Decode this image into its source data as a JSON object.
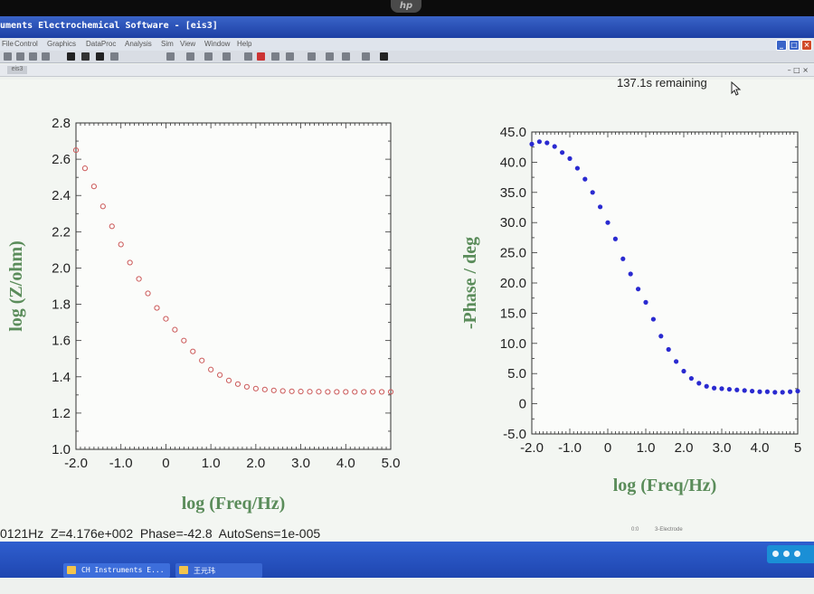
{
  "window": {
    "title": "uments Electrochemical Software - [eis3]",
    "menu": [
      "File",
      "Control",
      "Graphics",
      "DataProc",
      "Analysis",
      "Sim",
      "View",
      "Window",
      "Help"
    ]
  },
  "document_tab": "eis3",
  "progress": {
    "remaining": "137.1s remaining"
  },
  "status": {
    "readout": "0121Hz  Z=4.176e+002  Phase=-42.8  AutoSens=1e-005",
    "tiny_left": "0:0",
    "tiny_right": "3-Electrode"
  },
  "taskbar": {
    "items": [
      "CH Instruments E...",
      "王元玮"
    ]
  },
  "colors": {
    "axis_label": "#5a8c5a",
    "impedance_marker": "#cc5a5a",
    "phase_marker": "#2a2ad0"
  },
  "chart_data": [
    {
      "type": "scatter",
      "xlabel": "log (Freq/Hz)",
      "ylabel": "log (Z/ohm)",
      "xlim": [
        -2.0,
        5.0
      ],
      "ylim": [
        1.0,
        2.8
      ],
      "xticks": [
        "-2.0",
        "-1.0",
        "0",
        "1.0",
        "2.0",
        "3.0",
        "4.0",
        "5.0"
      ],
      "yticks": [
        "1.0",
        "1.2",
        "1.4",
        "1.6",
        "1.8",
        "2.0",
        "2.2",
        "2.4",
        "2.6",
        "2.8"
      ],
      "marker": "open-circle",
      "x": [
        -2.0,
        -1.8,
        -1.6,
        -1.4,
        -1.2,
        -1.0,
        -0.8,
        -0.6,
        -0.4,
        -0.2,
        0.0,
        0.2,
        0.4,
        0.6,
        0.8,
        1.0,
        1.2,
        1.4,
        1.6,
        1.8,
        2.0,
        2.2,
        2.4,
        2.6,
        2.8,
        3.0,
        3.2,
        3.4,
        3.6,
        3.8,
        4.0,
        4.2,
        4.4,
        4.6,
        4.8,
        5.0
      ],
      "y": [
        2.65,
        2.55,
        2.45,
        2.34,
        2.23,
        2.13,
        2.03,
        1.94,
        1.86,
        1.78,
        1.72,
        1.66,
        1.6,
        1.54,
        1.49,
        1.44,
        1.41,
        1.38,
        1.36,
        1.345,
        1.335,
        1.33,
        1.325,
        1.322,
        1.32,
        1.319,
        1.318,
        1.318,
        1.317,
        1.317,
        1.317,
        1.317,
        1.317,
        1.317,
        1.317,
        1.317
      ]
    },
    {
      "type": "scatter",
      "xlabel": "log (Freq/Hz)",
      "ylabel": "-Phase / deg",
      "xlim": [
        -2.0,
        5.0
      ],
      "ylim": [
        -5.0,
        45.0
      ],
      "xticks": [
        "-2.0",
        "-1.0",
        "0",
        "1.0",
        "2.0",
        "3.0",
        "4.0",
        "5"
      ],
      "yticks": [
        "-5.0",
        "0",
        "5.0",
        "10.0",
        "15.0",
        "20.0",
        "25.0",
        "30.0",
        "35.0",
        "40.0",
        "45.0"
      ],
      "marker": "filled-circle",
      "x": [
        -2.0,
        -1.8,
        -1.6,
        -1.4,
        -1.2,
        -1.0,
        -0.8,
        -0.6,
        -0.4,
        -0.2,
        0.0,
        0.2,
        0.4,
        0.6,
        0.8,
        1.0,
        1.2,
        1.4,
        1.6,
        1.8,
        2.0,
        2.2,
        2.4,
        2.6,
        2.8,
        3.0,
        3.2,
        3.4,
        3.6,
        3.8,
        4.0,
        4.2,
        4.4,
        4.6,
        4.8,
        5.0
      ],
      "y": [
        43.0,
        43.4,
        43.2,
        42.6,
        41.6,
        40.6,
        39.0,
        37.2,
        35.0,
        32.6,
        30.0,
        27.3,
        24.0,
        21.5,
        19.0,
        16.8,
        14.0,
        11.2,
        9.0,
        7.0,
        5.4,
        4.2,
        3.4,
        2.9,
        2.6,
        2.5,
        2.4,
        2.3,
        2.2,
        2.1,
        2.0,
        2.0,
        1.9,
        1.9,
        2.0,
        2.1
      ]
    }
  ]
}
